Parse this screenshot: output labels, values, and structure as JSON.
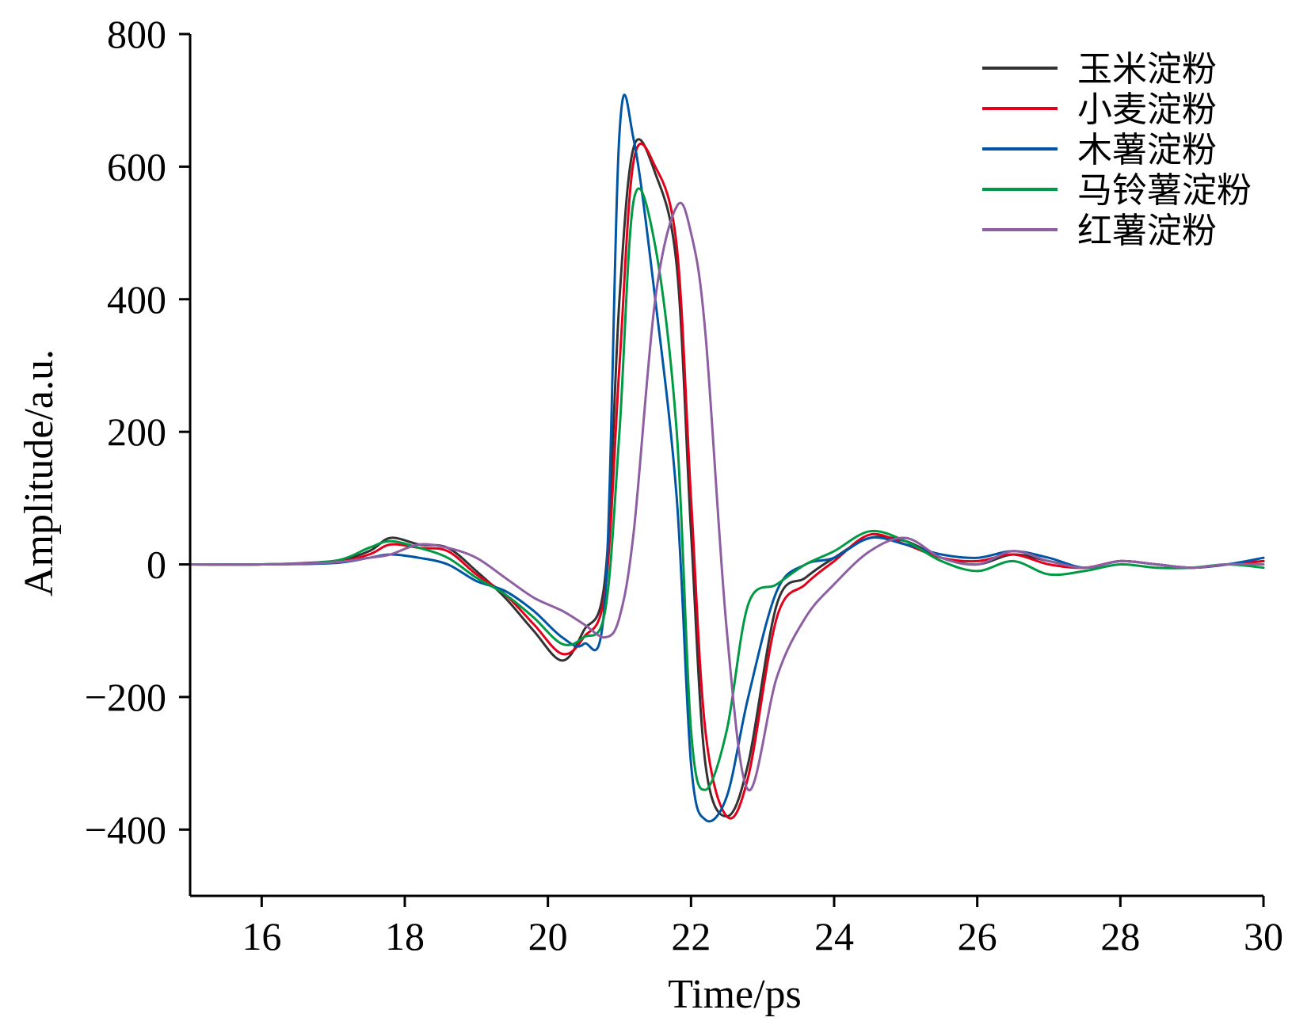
{
  "chart_data": {
    "type": "line",
    "title": "",
    "xlabel": "Time/ps",
    "ylabel": "Amplitude/a.u.",
    "xlim": [
      15,
      30
    ],
    "ylim": [
      -500,
      800
    ],
    "xticks": [
      16,
      18,
      20,
      22,
      24,
      26,
      28,
      30
    ],
    "yticks": [
      -400,
      -200,
      0,
      200,
      400,
      600,
      800
    ],
    "ytick_labels": [
      "−400",
      "−200",
      "0",
      "200",
      "400",
      "600",
      "800"
    ],
    "grid": false,
    "legend_position": "top-right",
    "series": [
      {
        "name": "玉米淀粉",
        "color": "#333333",
        "x": [
          15,
          16,
          17,
          17.5,
          17.8,
          18.2,
          18.6,
          19.0,
          19.4,
          19.8,
          20.2,
          20.5,
          20.8,
          21.0,
          21.2,
          21.5,
          21.8,
          22.0,
          22.2,
          22.5,
          22.8,
          23.2,
          23.6,
          24.0,
          24.5,
          25.0,
          25.5,
          26.0,
          26.5,
          27.0,
          27.5,
          28.0,
          28.5,
          29.0,
          29.5,
          30
        ],
        "y": [
          0,
          0,
          5,
          20,
          40,
          30,
          25,
          -10,
          -50,
          -100,
          -145,
          -100,
          -20,
          400,
          630,
          590,
          450,
          50,
          -300,
          -380,
          -300,
          -60,
          -20,
          10,
          40,
          35,
          10,
          0,
          15,
          5,
          -5,
          5,
          0,
          -5,
          0,
          5
        ]
      },
      {
        "name": "小麦淀粉",
        "color": "#e3001b",
        "x": [
          15,
          16,
          17,
          17.5,
          17.8,
          18.2,
          18.6,
          19.0,
          19.4,
          19.8,
          20.2,
          20.5,
          20.8,
          21.0,
          21.2,
          21.5,
          21.8,
          22.0,
          22.2,
          22.5,
          22.8,
          23.2,
          23.6,
          24.0,
          24.5,
          25.0,
          25.5,
          26.0,
          26.5,
          27.0,
          27.5,
          28.0,
          28.5,
          29.0,
          29.5,
          30
        ],
        "y": [
          0,
          0,
          3,
          15,
          30,
          25,
          20,
          -15,
          -45,
          -90,
          -135,
          -110,
          -40,
          300,
          610,
          600,
          480,
          100,
          -250,
          -380,
          -320,
          -80,
          -30,
          5,
          45,
          30,
          10,
          5,
          15,
          0,
          -5,
          5,
          0,
          -5,
          0,
          5
        ]
      },
      {
        "name": "木薯淀粉",
        "color": "#0055a5",
        "x": [
          15,
          16,
          17,
          17.5,
          17.8,
          18.2,
          18.6,
          19.0,
          19.4,
          19.8,
          20.2,
          20.5,
          20.8,
          21.0,
          21.2,
          21.5,
          21.8,
          22.0,
          22.2,
          22.5,
          22.8,
          23.2,
          23.6,
          24.0,
          24.5,
          25.0,
          25.5,
          26.0,
          26.5,
          27.0,
          27.5,
          28.0,
          28.5,
          29.0,
          29.5,
          30
        ],
        "y": [
          0,
          0,
          2,
          10,
          15,
          10,
          0,
          -25,
          -40,
          -70,
          -110,
          -120,
          -50,
          650,
          640,
          400,
          100,
          -300,
          -385,
          -350,
          -200,
          -40,
          0,
          10,
          40,
          30,
          15,
          10,
          20,
          10,
          -5,
          5,
          0,
          -5,
          0,
          10
        ]
      },
      {
        "name": "马铃薯淀粉",
        "color": "#009a44",
        "x": [
          15,
          16,
          17,
          17.5,
          17.8,
          18.2,
          18.6,
          19.0,
          19.4,
          19.8,
          20.2,
          20.5,
          20.8,
          21.0,
          21.2,
          21.5,
          21.8,
          22.0,
          22.2,
          22.5,
          22.8,
          23.2,
          23.6,
          24.0,
          24.5,
          25.0,
          25.5,
          26.0,
          26.5,
          27.0,
          27.5,
          28.0,
          28.5,
          29.0,
          29.5,
          30
        ],
        "y": [
          0,
          0,
          5,
          25,
          35,
          25,
          10,
          -20,
          -45,
          -80,
          -120,
          -110,
          -70,
          200,
          550,
          480,
          200,
          -250,
          -340,
          -250,
          -60,
          -30,
          0,
          20,
          50,
          35,
          5,
          -10,
          5,
          -15,
          -10,
          0,
          -5,
          -5,
          0,
          -5
        ]
      },
      {
        "name": "红薯淀粉",
        "color": "#8e5ea2",
        "x": [
          15,
          16,
          17,
          17.5,
          17.8,
          18.2,
          18.6,
          19.0,
          19.4,
          19.8,
          20.2,
          20.5,
          20.8,
          21.0,
          21.2,
          21.5,
          21.8,
          22.0,
          22.2,
          22.5,
          22.8,
          23.2,
          23.6,
          24.0,
          24.5,
          25.0,
          25.5,
          26.0,
          26.5,
          27.0,
          27.5,
          28.0,
          28.5,
          29.0,
          29.5,
          30
        ],
        "y": [
          0,
          0,
          3,
          10,
          15,
          30,
          25,
          10,
          -20,
          -50,
          -70,
          -90,
          -110,
          -80,
          50,
          400,
          540,
          500,
          350,
          -100,
          -340,
          -170,
          -80,
          -30,
          20,
          40,
          10,
          0,
          20,
          5,
          -5,
          5,
          0,
          -5,
          0,
          0
        ]
      }
    ]
  }
}
